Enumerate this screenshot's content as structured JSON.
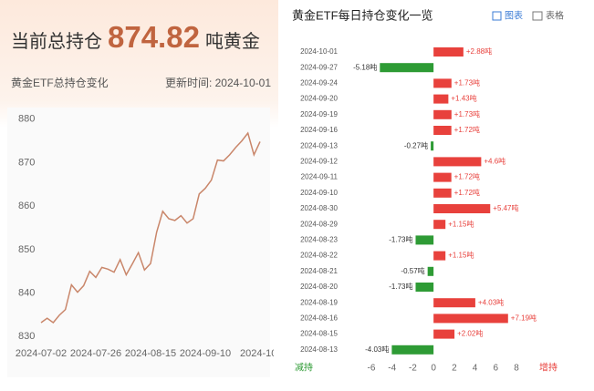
{
  "header": {
    "label": "当前总持仓",
    "value": 874.82,
    "unit": "吨黄金",
    "subtitle": "黄金ETF总持仓变化",
    "updated": "更新时间: 2024-10-01"
  },
  "tabs": [
    "图表",
    "表格"
  ],
  "chart_data": [
    {
      "type": "line",
      "color": "#c9866a",
      "grid": false,
      "categories": [
        "2024-07-02",
        null,
        null,
        null,
        null,
        null,
        null,
        null,
        null,
        "2024-07-26",
        null,
        null,
        null,
        null,
        null,
        null,
        null,
        null,
        "2024-08-15",
        null,
        null,
        null,
        null,
        null,
        null,
        null,
        null,
        "2024-09-10",
        null,
        null,
        null,
        null,
        null,
        null,
        null,
        null,
        "2024-10-"
      ],
      "values": [
        833.2,
        834.2,
        833.2,
        834.9,
        836.2,
        841.9,
        840.2,
        841.7,
        845.0,
        843.6,
        845.9,
        845.5,
        844.8,
        847.7,
        844.2,
        846.7,
        849.3,
        845.3,
        846.8,
        854.0,
        858.8,
        857.1,
        856.7,
        857.8,
        856.1,
        857.1,
        862.8,
        864.1,
        866.0,
        870.6,
        870.4,
        871.8,
        873.5,
        875.0,
        876.8,
        871.8,
        874.82
      ],
      "ylim": [
        829,
        881
      ],
      "yticks": [
        830,
        840,
        850,
        860,
        870,
        880
      ]
    },
    {
      "type": "bar",
      "title": "黄金ETF每日持仓变化一览",
      "categories": [
        "2024-10-01",
        "2024-09-27",
        "2024-09-24",
        "2024-09-20",
        "2024-09-19",
        "2024-09-16",
        "2024-09-13",
        "2024-09-12",
        "2024-09-11",
        "2024-09-10",
        "2024-08-30",
        "2024-08-29",
        "2024-08-23",
        "2024-08-22",
        "2024-08-21",
        "2024-08-20",
        "2024-08-19",
        "2024-08-16",
        "2024-08-15",
        "2024-08-13"
      ],
      "values": [
        2.88,
        -5.18,
        1.73,
        1.43,
        1.73,
        1.72,
        -0.27,
        4.6,
        1.72,
        1.72,
        5.47,
        1.15,
        -1.73,
        1.15,
        -0.57,
        -1.73,
        4.03,
        7.19,
        2.02,
        -4.03
      ],
      "value_labels": [
        "+2.88吨",
        "-5.18吨",
        "+1.73吨",
        "+1.43吨",
        "+1.73吨",
        "+1.72吨",
        "-0.27吨",
        "+4.6吨",
        "+1.72吨",
        "+1.72吨",
        "+5.47吨",
        "+1.15吨",
        "-1.73吨",
        "+1.15吨",
        "-0.57吨",
        "-1.73吨",
        "+4.03吨",
        "+7.19吨",
        "+2.02吨",
        "-4.03吨"
      ],
      "colors": {
        "increase": "#e8413c",
        "decrease": "#2e9b35"
      },
      "decrease_label": "减持",
      "increase_label": "增持",
      "xlim": [
        -6,
        8
      ],
      "xticks": [
        -6,
        -4,
        -2,
        0,
        2,
        4,
        6,
        8
      ]
    }
  ]
}
